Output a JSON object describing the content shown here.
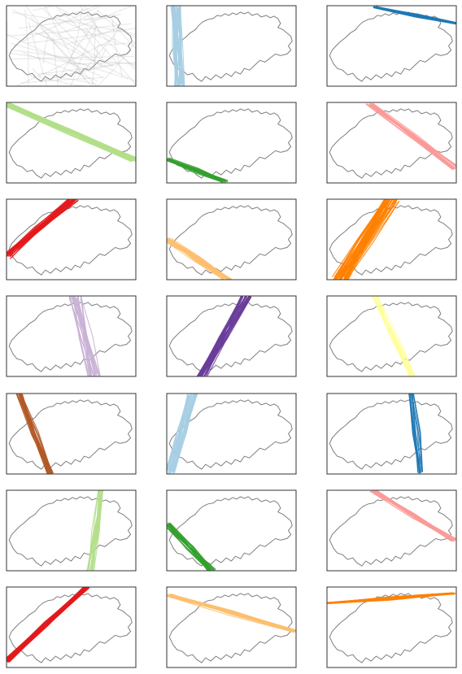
{
  "figure": {
    "rows": 7,
    "cols": 3
  },
  "colors": {
    "border": "#333333",
    "outline": "#7f7f7f",
    "background": "#ffffff"
  },
  "chart_data": [
    {
      "type": "line",
      "panel": 1,
      "color": "#bdbdbd",
      "opacity": 0.35,
      "count": 60,
      "kind": "random",
      "series": [
        {
          "values": [
            [
              0.0,
              0.25
            ],
            [
              1.0,
              0.35
            ]
          ]
        }
      ]
    },
    {
      "type": "line",
      "panel": 2,
      "color": "#a6cee3",
      "count": 30,
      "spread": 0.08,
      "start": [
        0.07,
        0.0
      ],
      "end": [
        0.1,
        1.0
      ]
    },
    {
      "type": "line",
      "panel": 3,
      "color": "#1f78b4",
      "count": 25,
      "spread": 0.03,
      "start": [
        0.37,
        0.02
      ],
      "end": [
        1.0,
        0.22
      ]
    },
    {
      "type": "line",
      "panel": 4,
      "color": "#b2df8a",
      "count": 30,
      "spread": 0.07,
      "start": [
        0.0,
        0.02
      ],
      "end": [
        1.0,
        0.72
      ]
    },
    {
      "type": "line",
      "panel": 5,
      "color": "#33a02c",
      "count": 22,
      "spread": 0.05,
      "start": [
        0.0,
        0.7
      ],
      "end": [
        0.45,
        0.98
      ]
    },
    {
      "type": "line",
      "panel": 6,
      "color": "#fb9a99",
      "count": 22,
      "spread": 0.06,
      "start": [
        0.33,
        0.02
      ],
      "end": [
        1.0,
        0.82
      ]
    },
    {
      "type": "line",
      "panel": 7,
      "color": "#e31a1c",
      "count": 25,
      "spread": 0.08,
      "start": [
        0.0,
        0.72
      ],
      "end": [
        0.52,
        0.0
      ]
    },
    {
      "type": "line",
      "panel": 8,
      "color": "#fdbf6f",
      "count": 22,
      "spread": 0.07,
      "start": [
        0.0,
        0.5
      ],
      "end": [
        0.47,
        1.0
      ]
    },
    {
      "type": "line",
      "panel": 9,
      "color": "#ff7f00",
      "count": 40,
      "spread": 0.12,
      "start": [
        0.1,
        1.0
      ],
      "end": [
        0.5,
        0.0
      ]
    },
    {
      "type": "line",
      "panel": 10,
      "color": "#cab2d6",
      "count": 28,
      "spread": 0.1,
      "start": [
        0.53,
        0.0
      ],
      "end": [
        0.68,
        1.0
      ]
    },
    {
      "type": "line",
      "panel": 11,
      "color": "#6a3d9a",
      "count": 30,
      "spread": 0.08,
      "start": [
        0.62,
        0.0
      ],
      "end": [
        0.27,
        1.0
      ]
    },
    {
      "type": "line",
      "panel": 12,
      "color": "#ffff99",
      "count": 14,
      "spread": 0.05,
      "start": [
        0.37,
        0.0
      ],
      "end": [
        0.66,
        1.0
      ]
    },
    {
      "type": "line",
      "panel": 13,
      "color": "#b15928",
      "count": 20,
      "spread": 0.05,
      "start": [
        0.1,
        0.0
      ],
      "end": [
        0.34,
        1.0
      ]
    },
    {
      "type": "line",
      "panel": 14,
      "color": "#a6cee3",
      "count": 28,
      "spread": 0.08,
      "start": [
        0.2,
        0.0
      ],
      "end": [
        0.02,
        0.98
      ]
    },
    {
      "type": "line",
      "panel": 15,
      "color": "#1f78b4",
      "count": 12,
      "spread": 0.04,
      "start": [
        0.65,
        0.0
      ],
      "end": [
        0.72,
        0.98
      ]
    },
    {
      "type": "line",
      "panel": 16,
      "color": "#b2df8a",
      "count": 16,
      "spread": 0.06,
      "start": [
        0.72,
        0.0
      ],
      "end": [
        0.65,
        1.0
      ]
    },
    {
      "type": "line",
      "panel": 17,
      "color": "#33a02c",
      "count": 22,
      "spread": 0.06,
      "start": [
        0.0,
        0.42
      ],
      "end": [
        0.35,
        1.0
      ]
    },
    {
      "type": "line",
      "panel": 18,
      "color": "#fb9a99",
      "count": 18,
      "spread": 0.05,
      "start": [
        0.35,
        0.0
      ],
      "end": [
        0.98,
        0.62
      ]
    },
    {
      "type": "line",
      "panel": 19,
      "color": "#e31a1c",
      "count": 25,
      "spread": 0.06,
      "start": [
        0.0,
        0.92
      ],
      "end": [
        0.62,
        0.0
      ]
    },
    {
      "type": "line",
      "panel": 20,
      "color": "#fdbf6f",
      "count": 22,
      "spread": 0.05,
      "start": [
        0.02,
        0.1
      ],
      "end": [
        1.0,
        0.55
      ]
    },
    {
      "type": "line",
      "panel": 21,
      "color": "#ff7f00",
      "count": 12,
      "spread": 0.03,
      "start": [
        0.0,
        0.2
      ],
      "end": [
        0.98,
        0.08
      ]
    }
  ]
}
